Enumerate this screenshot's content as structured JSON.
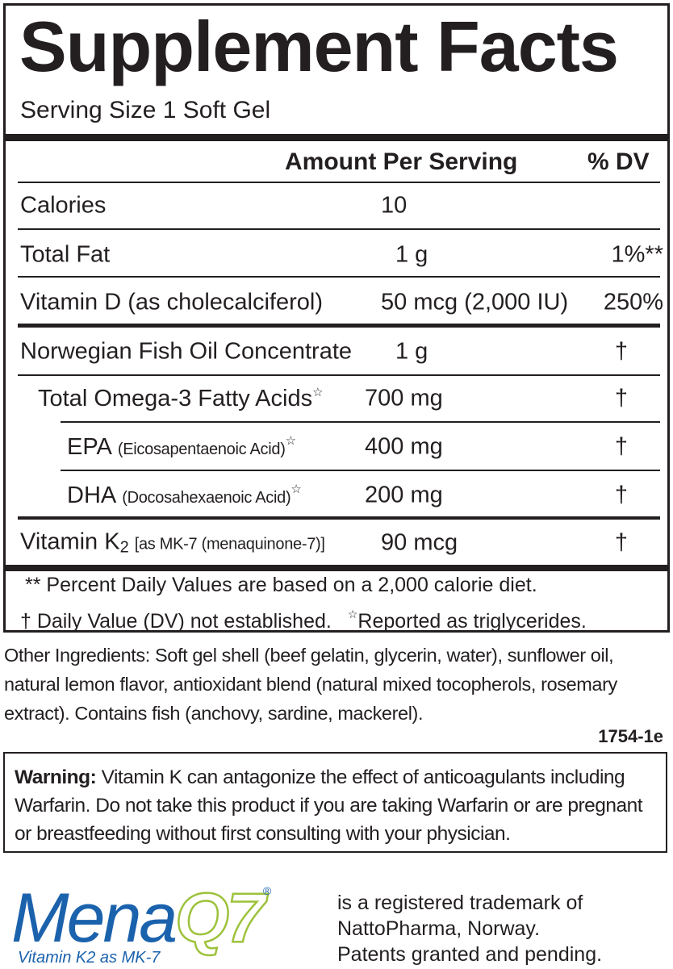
{
  "facts": {
    "title": "Supplement Facts",
    "serving_size": "Serving Size 1 Soft Gel",
    "header": {
      "amount": "Amount Per Serving",
      "dv": "% DV"
    },
    "rows": [
      {
        "name": "Calories",
        "amount": "10"
      },
      {
        "name": "Total Fat",
        "amount": "1 g",
        "dv": "1%**"
      },
      {
        "name": "Vitamin D (as cholecalciferol)",
        "amount": "50 mcg (2,000 IU)",
        "dv": "250%"
      },
      {
        "name": "Norwegian Fish Oil Concentrate",
        "amount": "1 g",
        "dv": "†"
      },
      {
        "name": "Total Omega-3 Fatty Acids",
        "mark": "☆",
        "amount": "700 mg",
        "dv": "†"
      },
      {
        "name": "EPA",
        "note": "(Eicosapentaenoic Acid)",
        "mark": "☆",
        "amount": "400 mg",
        "dv": "†"
      },
      {
        "name": "DHA",
        "note": "(Docosahexaenoic Acid)",
        "mark": "☆",
        "amount": "200 mg",
        "dv": "†"
      },
      {
        "name": "Vitamin K",
        "sub": "2",
        "note": "[as MK-7 (menaquinone-7)]",
        "amount": "90 mcg",
        "dv": "†"
      }
    ],
    "footnotes": {
      "percent": "** Percent Daily Values are based on a 2,000 calorie diet.",
      "dagger": "† Daily Value (DV) not established.",
      "star_mark": "☆",
      "star": "Reported as triglycerides."
    }
  },
  "other_ingredients": "Other Ingredients: Soft gel shell (beef gelatin, glycerin, water), sunflower oil, natural lemon flavor, antioxidant blend (natural mixed tocopherols, rosemary extract). Contains fish (anchovy, sardine, mackerel).",
  "code": "1754-1e",
  "warning": {
    "label": "Warning:",
    "text": "Vitamin K can antagonize the effect of anticoagulants including Warfarin. Do not take this product if you are taking Warfarin or are pregnant or breastfeeding without first consulting with your physician."
  },
  "logo": {
    "mena": "Mena",
    "q7": "Q7",
    "registered": "®",
    "tagline": "Vitamin K2 as MK-7"
  },
  "trademark": [
    "is a registered trademark of",
    "NattoPharma, Norway.",
    "Patents granted and pending."
  ]
}
